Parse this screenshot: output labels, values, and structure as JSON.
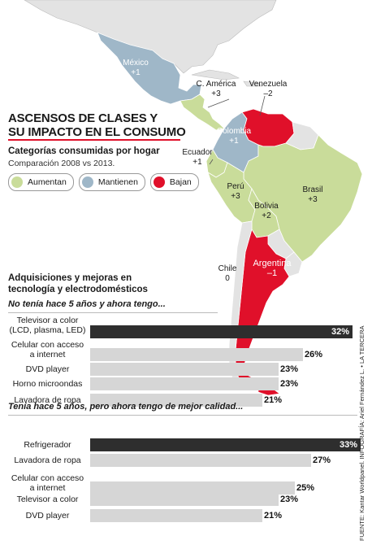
{
  "header": {
    "title_line1": "ASCENSOS DE CLASES Y",
    "title_line2": "SU IMPACTO EN EL CONSUMO",
    "subhead": "Categorías consumidas por hogar",
    "subnote": "Comparación 2008 vs 2013."
  },
  "legend": [
    {
      "label": "Aumentan",
      "color": "#c9dc9a"
    },
    {
      "label": "Mantienen",
      "color": "#9fb7c8"
    },
    {
      "label": "Bajan",
      "color": "#e0102a"
    }
  ],
  "map_labels": {
    "mexico": {
      "name": "México",
      "value": "+1"
    },
    "camerica": {
      "name": "C. América",
      "value": "+3"
    },
    "venezuela": {
      "name": "Venezuela",
      "value": "–2"
    },
    "colombia": {
      "name": "Colombia",
      "value": "+1"
    },
    "ecuador": {
      "name": "Ecuador",
      "value": "+1"
    },
    "peru": {
      "name": "Perú",
      "value": "+3"
    },
    "bolivia": {
      "name": "Bolivia",
      "value": "+2"
    },
    "brasil": {
      "name": "Brasil",
      "value": "+3"
    },
    "chile": {
      "name": "Chile",
      "value": "0"
    },
    "argentina": {
      "name": "Argentina",
      "value": "–1"
    }
  },
  "credit": "FUENTE: Kantar Worldpanel.    INFOGRAFÍA: Ariel Fernández L. • LA TERCERA",
  "chart_data": [
    {
      "type": "bar",
      "title": "Adquisiciones y mejoras en tecnología y electrodomésticos",
      "subtitle": "No tenía hace 5 años y ahora tengo...",
      "categories": [
        "Televisor a color (LCD, plasma, LED)",
        "Celular con acceso a internet",
        "DVD player",
        "Horno microondas",
        "Lavadora de ropa"
      ],
      "values": [
        32,
        26,
        23,
        23,
        21
      ],
      "value_labels": [
        "32%",
        "26%",
        "23%",
        "23%",
        "21%"
      ],
      "xlim": [
        0,
        33
      ]
    },
    {
      "type": "bar",
      "subtitle": "Tenía hace 5 años, pero ahora tengo de mejor calidad...",
      "categories": [
        "Refrigerador",
        "Lavadora de ropa",
        "Celular con acceso a internet",
        "Televisor a color",
        "DVD player"
      ],
      "values": [
        33,
        27,
        25,
        23,
        21
      ],
      "value_labels": [
        "33%",
        "27%",
        "25%",
        "23%",
        "21%"
      ],
      "xlim": [
        0,
        33
      ]
    }
  ]
}
